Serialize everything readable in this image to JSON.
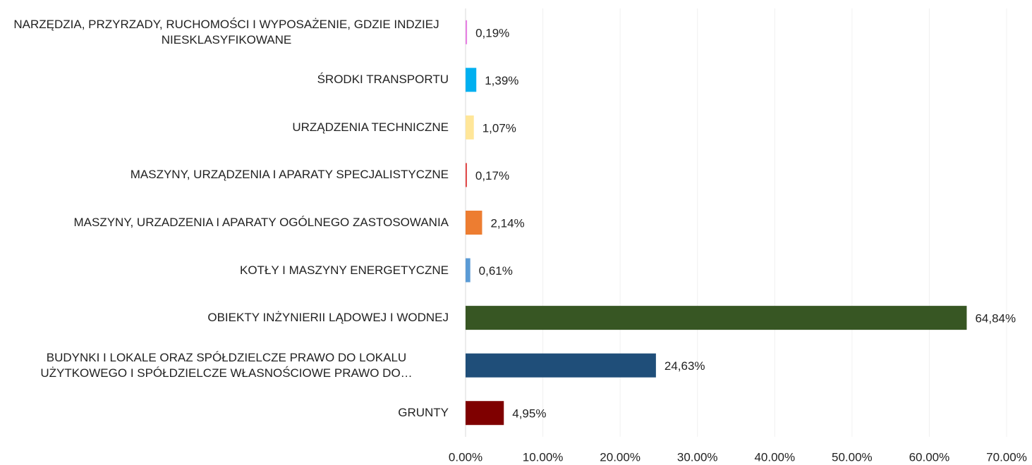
{
  "chart_data": {
    "type": "barh",
    "categories": [
      "NARZĘDZIA, PRZYRZADY, RUCHOMOŚCI I WYPOSAŻENIE, GDZIE INDZIEJ NIESKLASYFIKOWANE",
      "ŚRODKI TRANSPORTU",
      "URZĄDZENIA TECHNICZNE",
      "MASZYNY, URZĄDZENIA I APARATY SPECJALISTYCZNE",
      "MASZYNY, URZADZENIA I APARATY OGÓLNEGO ZASTOSOWANIA",
      "KOTŁY I MASZYNY ENERGETYCZNE",
      "OBIEKTY INŻYNIERII LĄDOWEJ I WODNEJ",
      "BUDYNKI I LOKALE ORAZ SPÓŁDZIELCZE PRAWO DO LOKALU UŻYTKOWEGO I SPÓŁDZIELCZE WŁASNOŚCIOWE PRAWO DO…",
      "GRUNTY"
    ],
    "values": [
      0.19,
      1.39,
      1.07,
      0.17,
      2.14,
      0.61,
      64.84,
      24.63,
      4.95
    ],
    "value_labels": [
      "0,19%",
      "1,39%",
      "1,07%",
      "0,17%",
      "2,14%",
      "0,61%",
      "64,84%",
      "24,63%",
      "4,95%"
    ],
    "colors": [
      "#e77fe3",
      "#00b0f0",
      "#ffe699",
      "#e03c3c",
      "#ed7d31",
      "#5b9bd5",
      "#375623",
      "#1f4e79",
      "#7f0000"
    ],
    "xlim": [
      0,
      70
    ],
    "xticks": [
      {
        "value": 0,
        "label": "0.00%"
      },
      {
        "value": 10,
        "label": "10.00%"
      },
      {
        "value": 20,
        "label": "20.00%"
      },
      {
        "value": 30,
        "label": "30.00%"
      },
      {
        "value": 40,
        "label": "40.00%"
      },
      {
        "value": 50,
        "label": "50.00%"
      },
      {
        "value": 60,
        "label": "60.00%"
      },
      {
        "value": 70,
        "label": "70.00%"
      }
    ],
    "grid": true
  }
}
